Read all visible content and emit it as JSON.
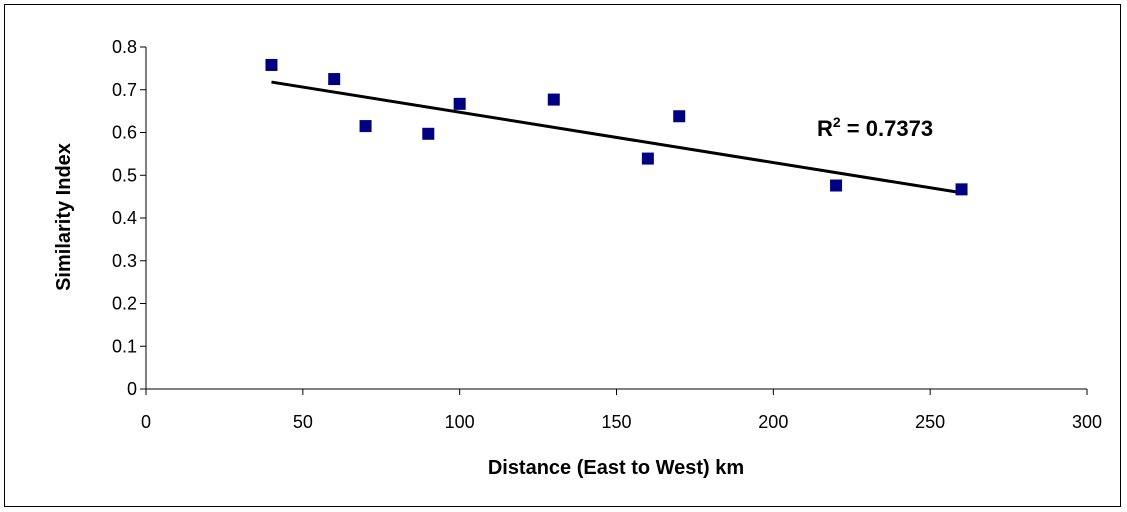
{
  "chart_data": {
    "type": "scatter",
    "xlabel": "Distance (East to West) km",
    "ylabel": "Similarity Index",
    "xlim": [
      0,
      300
    ],
    "ylim": [
      0,
      0.8
    ],
    "xticks": [
      0,
      50,
      100,
      150,
      200,
      250,
      300
    ],
    "yticks": [
      0,
      0.1,
      0.2,
      0.3,
      0.4,
      0.5,
      0.6,
      0.7,
      0.8
    ],
    "ytick_labels": [
      "0",
      "0.1",
      "0.2",
      "0.3",
      "0.4",
      "0.5",
      "0.6",
      "0.7",
      "0.8"
    ],
    "grid": false,
    "legend": "none",
    "marker_color": "#000080",
    "points": [
      {
        "x": 40,
        "y": 0.758
      },
      {
        "x": 60,
        "y": 0.725
      },
      {
        "x": 70,
        "y": 0.615
      },
      {
        "x": 90,
        "y": 0.597
      },
      {
        "x": 100,
        "y": 0.667
      },
      {
        "x": 130,
        "y": 0.677
      },
      {
        "x": 160,
        "y": 0.539
      },
      {
        "x": 170,
        "y": 0.638
      },
      {
        "x": 220,
        "y": 0.476
      },
      {
        "x": 260,
        "y": 0.467
      }
    ],
    "trendline": {
      "type": "linear",
      "x_start": 40,
      "y_start": 0.718,
      "x_end": 260,
      "y_end": 0.459
    },
    "annotation": {
      "prefix": "R",
      "superscript": "2",
      "suffix": " = 0.7373"
    }
  }
}
